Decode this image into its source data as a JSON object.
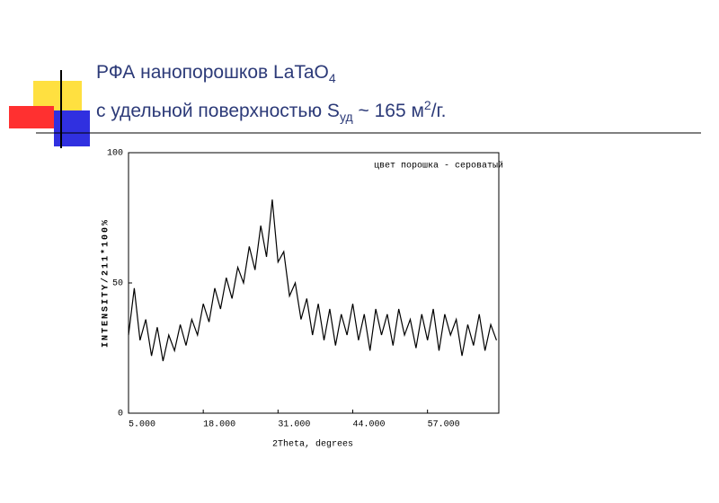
{
  "slide": {
    "title": {
      "line1": "РФА нанопорошков LaTaO",
      "line1_sub": "4",
      "line2_a": "с удельной поверхностью S",
      "line2_sub": "уд",
      "line2_b": " ~ 165 м",
      "line2_sup": "2",
      "line2_c": "/г."
    }
  },
  "chart_data": {
    "type": "line",
    "annotation": "цвет порошка - сероватый",
    "x_label": "2Theta, degrees",
    "y_label": "INTENSITY/211*100%",
    "color": "#000000",
    "x": [
      5,
      6,
      7,
      8,
      9,
      10,
      11,
      12,
      13,
      14,
      15,
      16,
      17,
      18,
      19,
      20,
      21,
      22,
      23,
      24,
      25,
      26,
      27,
      28,
      29,
      30,
      31,
      32,
      33,
      34,
      35,
      36,
      37,
      38,
      39,
      40,
      41,
      42,
      43,
      44,
      45,
      46,
      47,
      48,
      49,
      50,
      51,
      52,
      53,
      54,
      55,
      56,
      57,
      58,
      59,
      60,
      61,
      62,
      63,
      64,
      65,
      66,
      67,
      68,
      69
    ],
    "series": [
      {
        "values": [
          30,
          48,
          28,
          36,
          22,
          33,
          20,
          30,
          24,
          34,
          26,
          36,
          30,
          42,
          35,
          48,
          40,
          52,
          44,
          56,
          50,
          64,
          55,
          72,
          60,
          82,
          58,
          62,
          45,
          50,
          36,
          44,
          30,
          42,
          28,
          40,
          26,
          38,
          30,
          42,
          28,
          38,
          24,
          40,
          30,
          38,
          26,
          40,
          30,
          36,
          25,
          38,
          28,
          40,
          24,
          38,
          30,
          36,
          22,
          34,
          26,
          38,
          24,
          34,
          28
        ]
      }
    ],
    "xlim": [
      5,
      69.4
    ],
    "ylim": [
      0,
      100
    ],
    "xticks": [
      {
        "value": 5,
        "label": "5.000"
      },
      {
        "value": 18,
        "label": "18.000"
      },
      {
        "value": 31,
        "label": "31.000"
      },
      {
        "value": 44,
        "label": "44.000"
      },
      {
        "value": 57,
        "label": "57.000"
      }
    ],
    "yticks": [
      0,
      50,
      100
    ]
  }
}
